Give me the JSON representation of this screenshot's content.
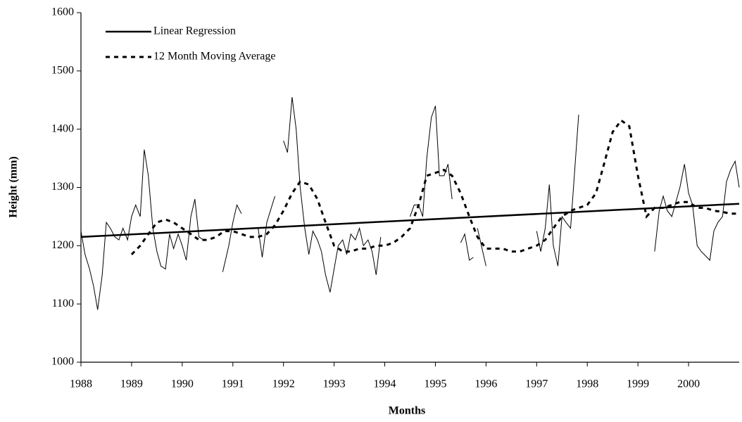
{
  "chart_data": {
    "type": "line",
    "x_label": "Months",
    "y_label": "Height (mm)",
    "xlim": [
      1988,
      2001
    ],
    "ylim": [
      1000,
      1600
    ],
    "xticks": [
      1988,
      1989,
      1990,
      1991,
      1992,
      1993,
      1994,
      1995,
      1996,
      1997,
      1998,
      1999,
      2000
    ],
    "yticks": [
      1000,
      1100,
      1200,
      1300,
      1400,
      1500,
      1600
    ],
    "legend": "top-left",
    "series": [
      {
        "color": "#000000",
        "line_style": "solid",
        "line_width": 1,
        "x": [
          1988.0,
          1988.08,
          1988.17,
          1988.25,
          1988.33,
          1988.42,
          1988.5,
          1988.58,
          1988.67,
          1988.75,
          1988.83,
          1988.92,
          1989.0,
          1989.08,
          1989.17,
          1989.25,
          1989.33,
          1989.42,
          1989.5,
          1989.58,
          1989.67,
          1989.75,
          1989.83,
          1989.92,
          1990.0,
          1990.08,
          1990.17,
          1990.25,
          1990.33,
          1990.42,
          null,
          1990.8,
          1990.92,
          1991.0,
          1991.08,
          1991.17,
          null,
          1991.5,
          1991.58,
          1991.67,
          1991.83,
          null,
          1992.0,
          1992.08,
          1992.17,
          1992.25,
          1992.33,
          1992.42,
          1992.5,
          1992.58,
          1992.67,
          1992.75,
          1992.83,
          1992.92,
          1993.0,
          1993.08,
          1993.17,
          1993.25,
          1993.33,
          1993.42,
          1993.5,
          1993.58,
          1993.67,
          1993.75,
          1993.83,
          1993.92,
          null,
          1994.5,
          1994.58,
          1994.67,
          1994.75,
          1994.83,
          1994.92,
          1995.0,
          1995.08,
          1995.17,
          1995.25,
          1995.33,
          null,
          1995.5,
          1995.58,
          1995.67,
          1995.75,
          null,
          1995.83,
          1996.0,
          null,
          1997.0,
          1997.08,
          1997.17,
          1997.25,
          1997.33,
          1997.42,
          1997.5,
          1997.58,
          1997.67,
          1997.83,
          null,
          1999.33,
          1999.42,
          1999.5,
          1999.58,
          1999.67,
          1999.75,
          1999.83,
          1999.92,
          2000.0,
          2000.08,
          2000.17,
          2000.25,
          2000.42,
          2000.5,
          2000.58,
          2000.67,
          2000.75,
          2000.83,
          2000.92,
          2001.0
        ],
        "values": [
          1225,
          1185,
          1160,
          1130,
          1090,
          1150,
          1240,
          1230,
          1215,
          1210,
          1230,
          1210,
          1250,
          1270,
          1250,
          1365,
          1320,
          1230,
          1190,
          1165,
          1160,
          1220,
          1195,
          1220,
          1200,
          1175,
          1250,
          1280,
          1215,
          1210,
          null,
          1155,
          1200,
          1240,
          1270,
          1255,
          null,
          1230,
          1180,
          1240,
          1285,
          null,
          1380,
          1360,
          1455,
          1400,
          1300,
          1230,
          1185,
          1225,
          1210,
          1190,
          1150,
          1120,
          1160,
          1200,
          1210,
          1185,
          1220,
          1210,
          1230,
          1200,
          1210,
          1190,
          1150,
          1215,
          null,
          1250,
          1270,
          1270,
          1250,
          1350,
          1420,
          1440,
          1320,
          1320,
          1340,
          1280,
          null,
          1205,
          1220,
          1175,
          1180,
          null,
          1230,
          1165,
          null,
          1225,
          1190,
          1230,
          1305,
          1200,
          1165,
          1250,
          1240,
          1230,
          1425,
          null,
          1190,
          1260,
          1285,
          1260,
          1250,
          1275,
          1300,
          1340,
          1290,
          1270,
          1200,
          1190,
          1175,
          1225,
          1240,
          1250,
          1310,
          1330,
          1345,
          1300
        ]
      },
      {
        "name": "Linear Regression",
        "color": "#000000",
        "line_style": "solid",
        "line_width": 2.5,
        "x": [
          1988,
          2001
        ],
        "values": [
          1215,
          1272
        ]
      },
      {
        "name": "12 Month Moving Average",
        "color": "#000000",
        "line_style": "dotted",
        "line_width": 3,
        "x": [
          1989.0,
          1989.17,
          1989.33,
          1989.5,
          1989.67,
          1989.83,
          1990.0,
          1990.17,
          1990.33,
          1990.5,
          1990.67,
          1990.83,
          1991.0,
          1991.17,
          1991.33,
          1991.5,
          1991.67,
          1991.83,
          1992.0,
          1992.17,
          1992.33,
          1992.5,
          1992.67,
          1992.83,
          1993.0,
          1993.17,
          1993.33,
          1993.5,
          1993.67,
          1993.83,
          1994.0,
          1994.17,
          1994.33,
          1994.5,
          1994.67,
          1994.83,
          1995.0,
          1995.17,
          1995.33,
          1995.5,
          1995.67,
          1995.83,
          1996.0,
          1996.17,
          1996.33,
          1996.5,
          1996.67,
          1996.83,
          1997.0,
          1997.17,
          1997.33,
          1997.5,
          1997.67,
          1997.83,
          1998.0,
          1998.17,
          1998.33,
          1998.5,
          1998.67,
          1998.83,
          1999.0,
          1999.17,
          1999.33,
          1999.5,
          1999.67,
          1999.83,
          2000.0,
          2000.17,
          2000.33,
          2000.5,
          2000.67,
          2000.83,
          2001.0
        ],
        "values": [
          1185,
          1200,
          1220,
          1240,
          1245,
          1240,
          1230,
          1220,
          1210,
          1210,
          1215,
          1225,
          1225,
          1220,
          1215,
          1215,
          1220,
          1235,
          1260,
          1290,
          1310,
          1305,
          1280,
          1240,
          1200,
          1190,
          1190,
          1195,
          1195,
          1200,
          1200,
          1205,
          1215,
          1230,
          1270,
          1320,
          1325,
          1330,
          1320,
          1290,
          1250,
          1215,
          1195,
          1195,
          1195,
          1190,
          1190,
          1195,
          1200,
          1210,
          1230,
          1250,
          1260,
          1265,
          1270,
          1290,
          1340,
          1395,
          1415,
          1405,
          1320,
          1250,
          1265,
          1265,
          1270,
          1275,
          1275,
          1265,
          1265,
          1260,
          1258,
          1255,
          1255
        ]
      }
    ]
  }
}
